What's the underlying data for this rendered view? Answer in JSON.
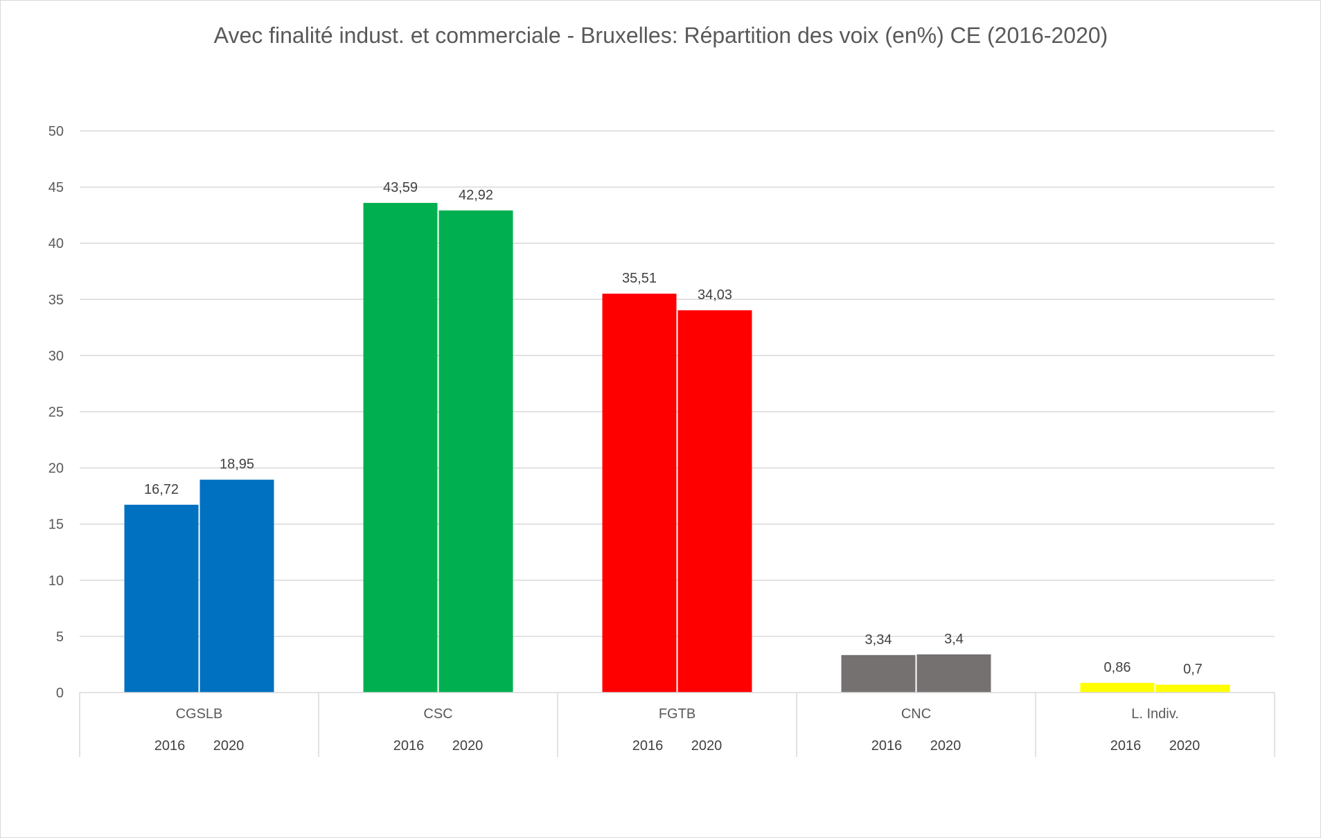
{
  "chart_data": {
    "type": "bar",
    "title": "Avec finalité indust. et commerciale - Bruxelles: Répartition des voix (en%) CE (2016-2020)",
    "xlabel": "",
    "ylabel": "",
    "ylim": [
      0,
      50
    ],
    "yticks": [
      "0",
      "5",
      "10",
      "15",
      "20",
      "25",
      "30",
      "35",
      "40",
      "45",
      "50"
    ],
    "grid": true,
    "legend": "none",
    "years": [
      "2016",
      "2020"
    ],
    "groups": [
      {
        "name": "CGSLB",
        "color": "#0070C0",
        "values": [
          16.72,
          18.95
        ],
        "labels": [
          "16,72",
          "18,95"
        ]
      },
      {
        "name": "CSC",
        "color": "#00B050",
        "values": [
          43.59,
          42.92
        ],
        "labels": [
          "43,59",
          "42,92"
        ]
      },
      {
        "name": "FGTB",
        "color": "#FF0000",
        "values": [
          35.51,
          34.03
        ],
        "labels": [
          "35,51",
          "34,03"
        ]
      },
      {
        "name": "CNC",
        "color": "#767171",
        "values": [
          3.34,
          3.4
        ],
        "labels": [
          "3,34",
          "3,4"
        ]
      },
      {
        "name": "L. Indiv.",
        "color": "#FFFF00",
        "values": [
          0.86,
          0.7
        ],
        "labels": [
          "0,86",
          "0,7"
        ]
      }
    ]
  }
}
